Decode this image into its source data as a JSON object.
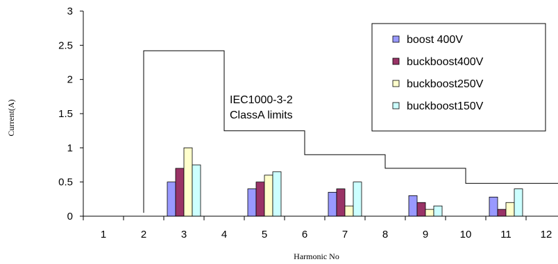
{
  "chart_data": {
    "type": "bar",
    "xlabel": "Harmonic No",
    "ylabel": "Current(A)",
    "ylim": [
      0,
      3
    ],
    "yticks": [
      "0",
      "0.5",
      "1",
      "1.5",
      "2",
      "2.5",
      "3"
    ],
    "categories": [
      "1",
      "2",
      "3",
      "4",
      "5",
      "6",
      "7",
      "8",
      "9",
      "10",
      "11",
      "12"
    ],
    "series": [
      {
        "name": "boost 400V",
        "color": "#9999ff",
        "values": [
          0,
          0,
          0.5,
          0,
          0.4,
          0,
          0.35,
          0,
          0.3,
          0,
          0.28,
          0
        ]
      },
      {
        "name": "buckboost400V",
        "color": "#993366",
        "values": [
          0,
          0,
          0.7,
          0,
          0.5,
          0,
          0.4,
          0,
          0.2,
          0,
          0.1,
          0
        ]
      },
      {
        "name": "buckboost250V",
        "color": "#ffffcc",
        "values": [
          0,
          0,
          1.0,
          0,
          0.6,
          0,
          0.15,
          0,
          0.1,
          0,
          0.2,
          0
        ]
      },
      {
        "name": "buckboost150V",
        "color": "#ccffff",
        "values": [
          0,
          0,
          0.75,
          0,
          0.65,
          0,
          0.5,
          0,
          0.15,
          0,
          0.4,
          0
        ]
      }
    ],
    "limit_line": {
      "points": [
        [
          2,
          0.05
        ],
        [
          2,
          2.42
        ],
        [
          4,
          2.42
        ],
        [
          4,
          1.25
        ],
        [
          6,
          1.25
        ],
        [
          6,
          0.9
        ],
        [
          8,
          0.9
        ],
        [
          8,
          0.7
        ],
        [
          10,
          0.7
        ],
        [
          10,
          0.48
        ],
        [
          12.4,
          0.48
        ]
      ]
    },
    "annotation": [
      "IEC1000-3-2",
      "ClassA limits"
    ],
    "legend_position": "top-right",
    "grid": false
  }
}
